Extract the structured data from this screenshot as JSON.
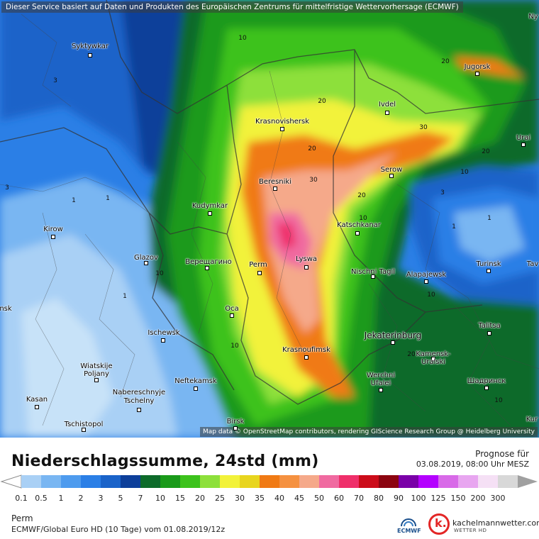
{
  "map": {
    "attribution_top": "Dieser Service basiert auf Daten und Produkten des Europäischen Zentrums für mittelfristige Wettervorhersage (ECMWF)",
    "attribution_bottom": "Map data © OpenStreetMap contributors, rendering GIScience Research Group @ Heidelberg University",
    "cities": [
      {
        "name": "Syktywkar"
      },
      {
        "name": "Krasnovishersk"
      },
      {
        "name": "Beresniki"
      },
      {
        "name": "Kudymkar"
      },
      {
        "name": "Kirow"
      },
      {
        "name": "Glazov"
      },
      {
        "name": "Верещагино"
      },
      {
        "name": "Perm"
      },
      {
        "name": "Lyswa"
      },
      {
        "name": "Oca"
      },
      {
        "name": "Ischewsk"
      },
      {
        "name": "Krasnoufimsk"
      },
      {
        "name": "Wiatskije Poljany"
      },
      {
        "name": "Nabereschnyje Tschelny"
      },
      {
        "name": "Neftekamsk"
      },
      {
        "name": "Kasan"
      },
      {
        "name": "Tschistopol"
      },
      {
        "name": "Birsk"
      },
      {
        "name": "Jugorsk"
      },
      {
        "name": "Ivdel"
      },
      {
        "name": "Urai"
      },
      {
        "name": "Serow"
      },
      {
        "name": "Katschkanar"
      },
      {
        "name": "Nischni Tagil"
      },
      {
        "name": "Alapajewsk"
      },
      {
        "name": "Turinsk"
      },
      {
        "name": "Jekaterinburg"
      },
      {
        "name": "Talitsa"
      },
      {
        "name": "Kamensk-Uralski"
      },
      {
        "name": "Шадринск"
      },
      {
        "name": "Werchni Ufalei"
      },
      {
        "name": "Tav"
      },
      {
        "name": "Ny"
      },
      {
        "name": "Kur"
      },
      {
        "name": "nsk"
      }
    ],
    "isoline_labels": [
      "10",
      "20",
      "30",
      "20",
      "20",
      "30",
      "20",
      "10",
      "20",
      "10",
      "1",
      "3",
      "1",
      "10",
      "1",
      "3",
      "10",
      "10",
      "20",
      "10",
      "1",
      "3",
      "1"
    ]
  },
  "legend": {
    "title": "Niederschlagssumme, 24std (mm)",
    "forecast_label": "Prognose für",
    "forecast_time": "03.08.2019, 08:00 Uhr MESZ",
    "location": "Perm",
    "model_run": "ECMWF/Global Euro HD (10 Tage) vom 01.08.2019/12z",
    "ecmwf_logo_text": "ECMWF",
    "brand_name": "kachelmannwetter.com",
    "brand_sub": "WETTER HD",
    "scale_values": [
      "0.1",
      "0.5",
      "1",
      "2",
      "3",
      "5",
      "7",
      "10",
      "15",
      "20",
      "25",
      "30",
      "35",
      "40",
      "45",
      "50",
      "60",
      "70",
      "80",
      "90",
      "100",
      "125",
      "150",
      "200",
      "300"
    ],
    "scale_colors": [
      "#a9d0f5",
      "#79b6f2",
      "#4e9bee",
      "#2b7fe6",
      "#1a63c9",
      "#0d3f9a",
      "#0d6b2a",
      "#1a9a1a",
      "#3cc21c",
      "#8de03b",
      "#f2f23a",
      "#e8d51e",
      "#f07a14",
      "#f59140",
      "#f5a98a",
      "#f06aa0",
      "#ef2f6a",
      "#cc0c1a",
      "#8c0410",
      "#7a00a8",
      "#b400ff",
      "#d86ae8",
      "#e8a6f0",
      "#f5e0f5",
      "#d8d8d8"
    ],
    "underflow_color": "#ffffff",
    "overflow_color": "#a0a0a0"
  }
}
